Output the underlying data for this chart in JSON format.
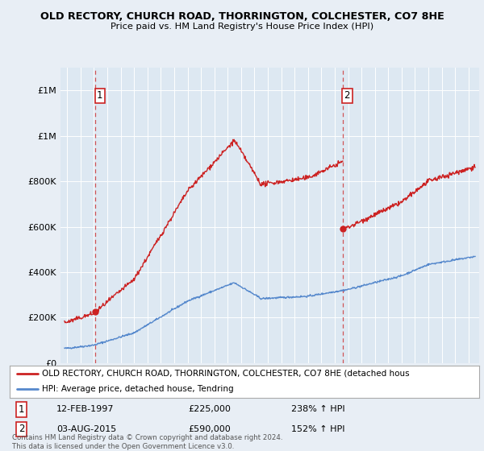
{
  "title1": "OLD RECTORY, CHURCH ROAD, THORRINGTON, COLCHESTER, CO7 8HE",
  "title2": "Price paid vs. HM Land Registry's House Price Index (HPI)",
  "bg_color": "#e8eef5",
  "plot_bg": "#dce8f0",
  "hpi_color": "#5588cc",
  "price_color": "#cc2222",
  "marker_color": "#cc2222",
  "purchase1_date": 1997.12,
  "purchase1_price": 225000,
  "purchase2_date": 2015.6,
  "purchase2_price": 590000,
  "legend_label1": "OLD RECTORY, CHURCH ROAD, THORRINGTON, COLCHESTER, CO7 8HE (detached hous",
  "legend_label2": "HPI: Average price, detached house, Tendring",
  "annot1_date": "12-FEB-1997",
  "annot1_price": "£225,000",
  "annot1_hpi": "238% ↑ HPI",
  "annot2_date": "03-AUG-2015",
  "annot2_price": "£590,000",
  "annot2_hpi": "152% ↑ HPI",
  "footer": "Contains HM Land Registry data © Crown copyright and database right 2024.\nThis data is licensed under the Open Government Licence v3.0.",
  "ylim": [
    0,
    1300000
  ],
  "xlim_start": 1994.5,
  "xlim_end": 2025.8
}
